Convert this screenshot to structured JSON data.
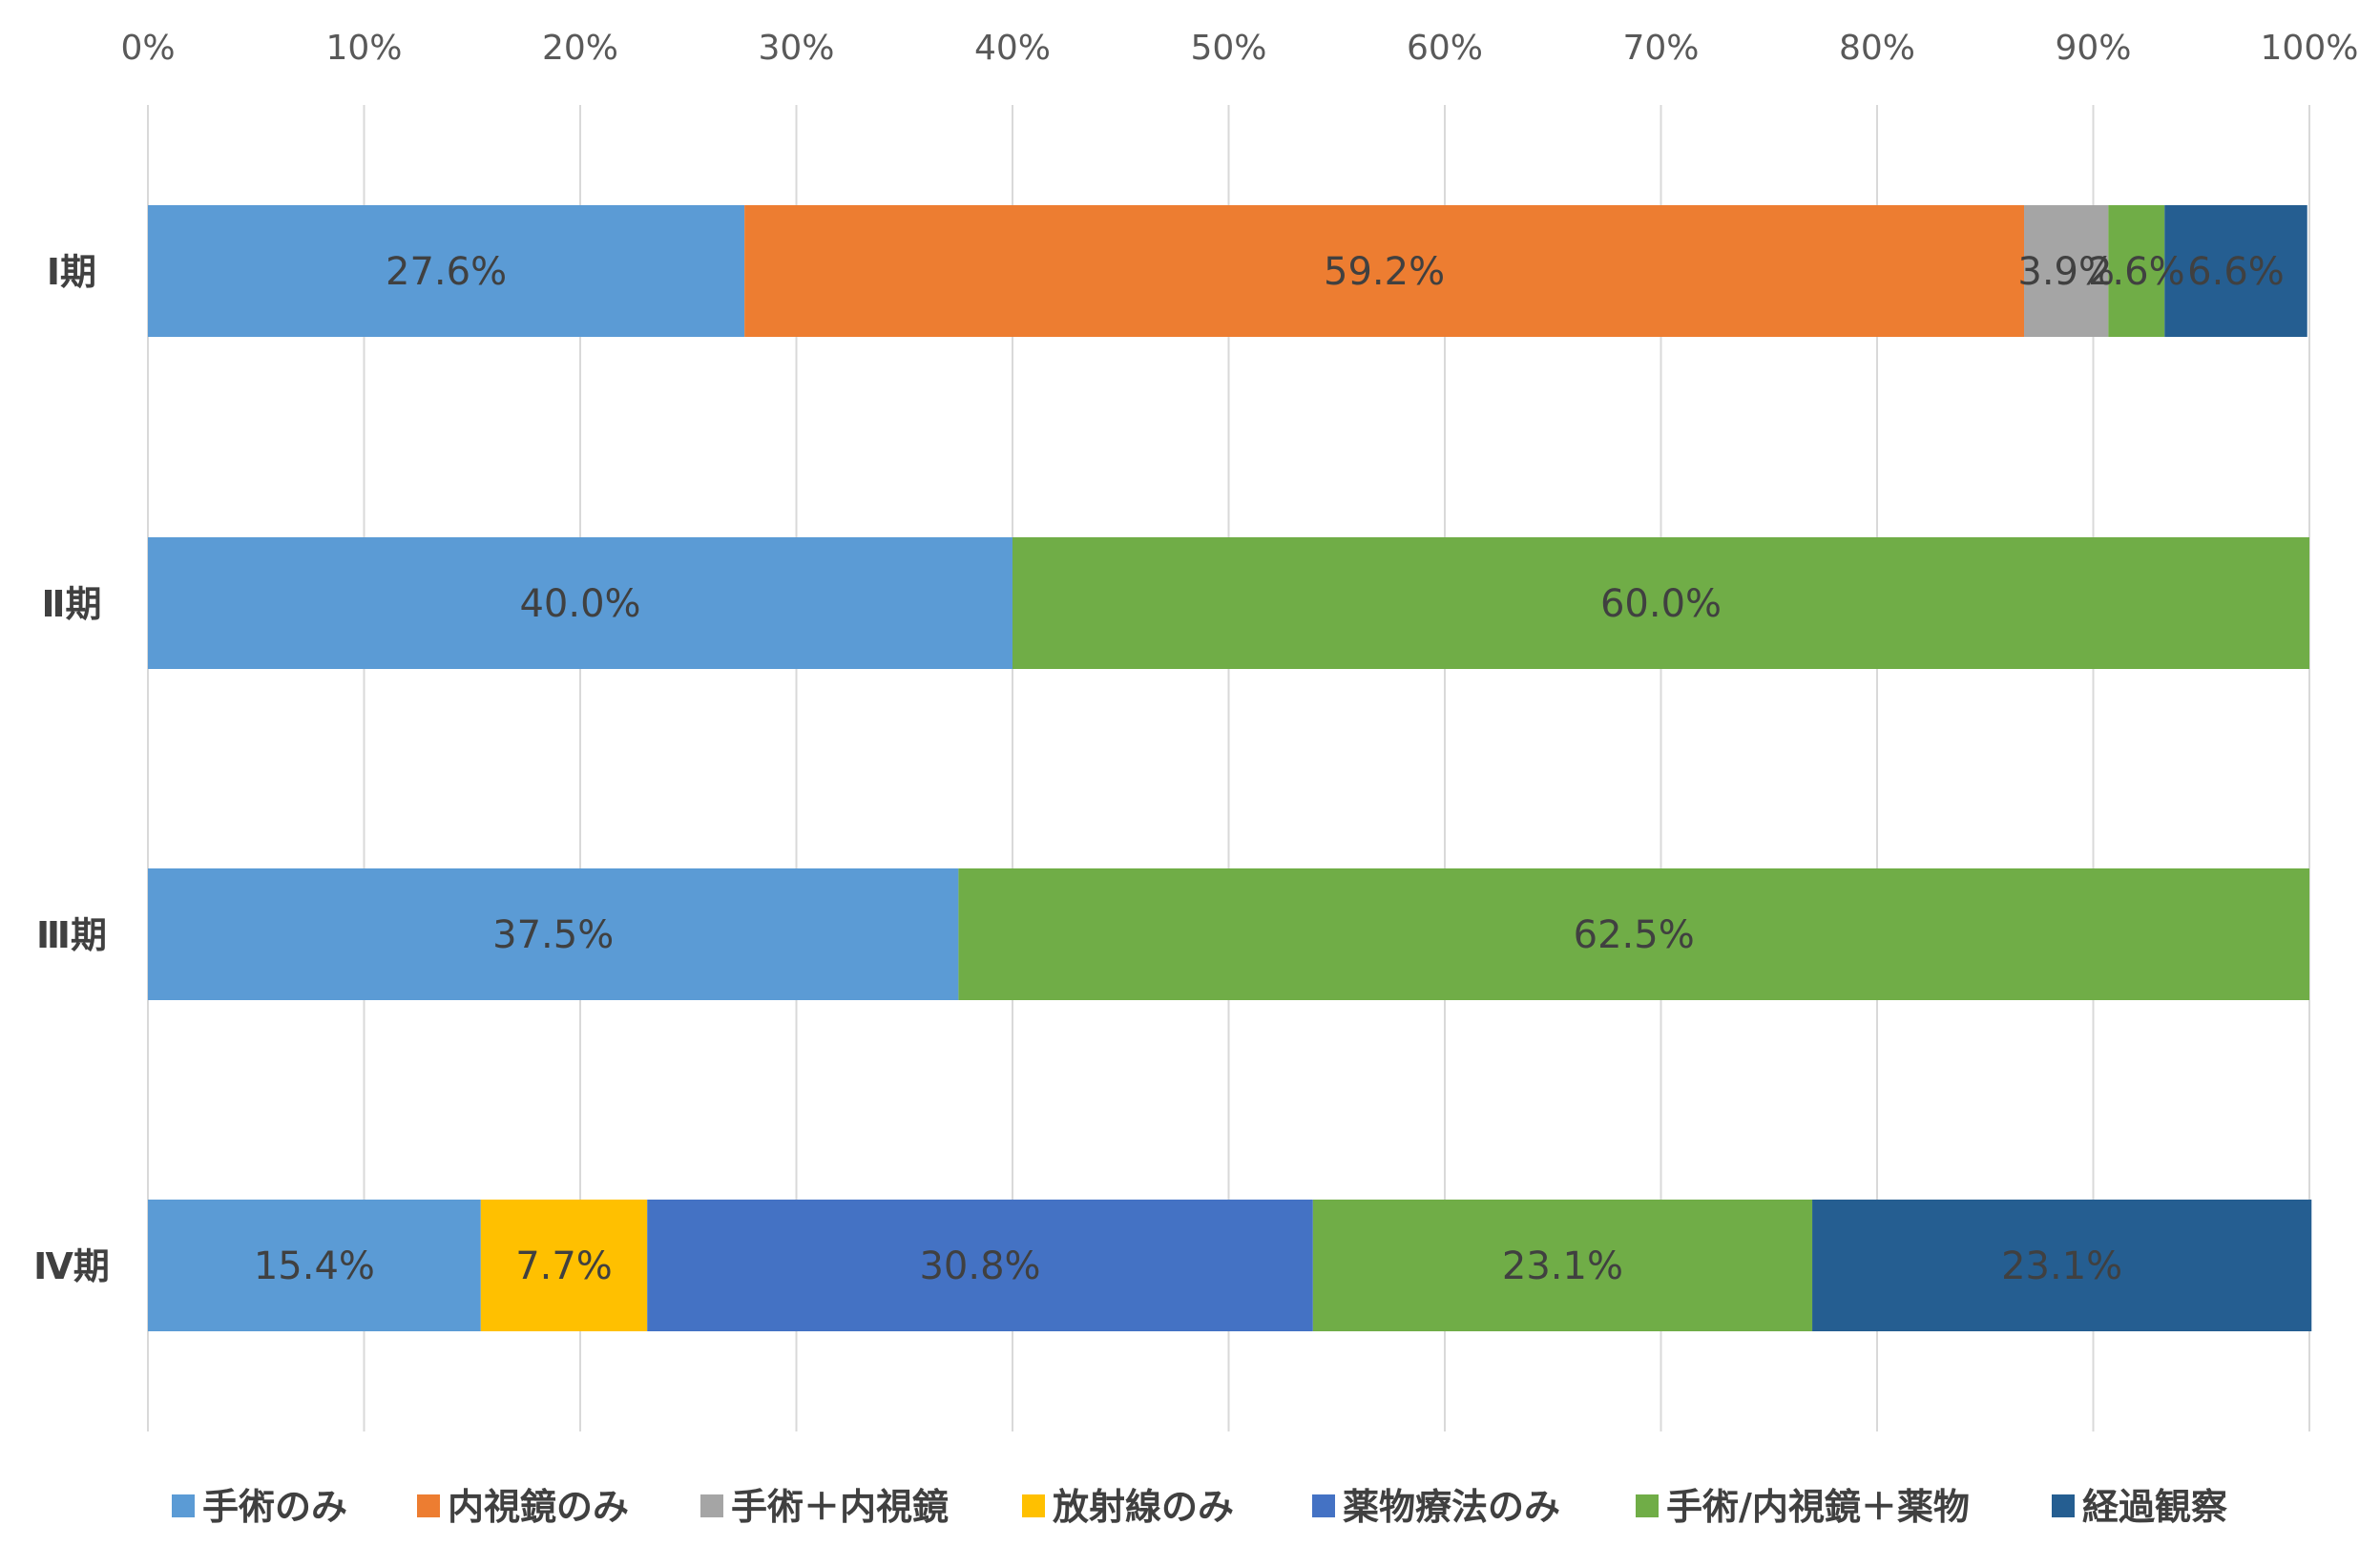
{
  "chart_data": {
    "type": "bar",
    "orientation": "horizontal",
    "stacked": "percent",
    "title": "",
    "xlabel": "",
    "ylabel": "",
    "xlim": [
      0,
      100
    ],
    "x_ticks": [
      "0%",
      "10%",
      "20%",
      "30%",
      "40%",
      "50%",
      "60%",
      "70%",
      "80%",
      "90%",
      "100%"
    ],
    "grid": "vertical",
    "legend_position": "bottom",
    "categories": [
      "Ⅰ期",
      "Ⅱ期",
      "Ⅲ期",
      "Ⅳ期"
    ],
    "series": [
      {
        "name": "手術のみ",
        "color": "#5B9BD5",
        "values": [
          27.6,
          40.0,
          37.5,
          15.4
        ]
      },
      {
        "name": "内視鏡のみ",
        "color": "#ED7D31",
        "values": [
          59.2,
          0,
          0,
          0
        ]
      },
      {
        "name": "手術＋内視鏡",
        "color": "#A5A5A5",
        "values": [
          3.9,
          0,
          0,
          0
        ]
      },
      {
        "name": "放射線のみ",
        "color": "#FFC000",
        "values": [
          0,
          0,
          0,
          7.7
        ]
      },
      {
        "name": "薬物療法のみ",
        "color": "#4472C4",
        "values": [
          0,
          0,
          0,
          30.8
        ]
      },
      {
        "name": "手術/内視鏡＋薬物",
        "color": "#70AD47",
        "values": [
          2.6,
          60.0,
          62.5,
          23.1
        ]
      },
      {
        "name": "経過観察",
        "color": "#255E91",
        "values": [
          6.6,
          0,
          0,
          23.1
        ]
      }
    ],
    "data_labels": [
      [
        "27.6%",
        "59.2%",
        "3.9%",
        "",
        "",
        "2.6%",
        "6.6%"
      ],
      [
        "40.0%",
        "",
        "",
        "",
        "",
        "60.0%",
        ""
      ],
      [
        "37.5%",
        "",
        "",
        "",
        "",
        "62.5%",
        ""
      ],
      [
        "15.4%",
        "",
        "",
        "7.7%",
        "30.8%",
        "23.1%",
        "23.1%"
      ]
    ]
  }
}
